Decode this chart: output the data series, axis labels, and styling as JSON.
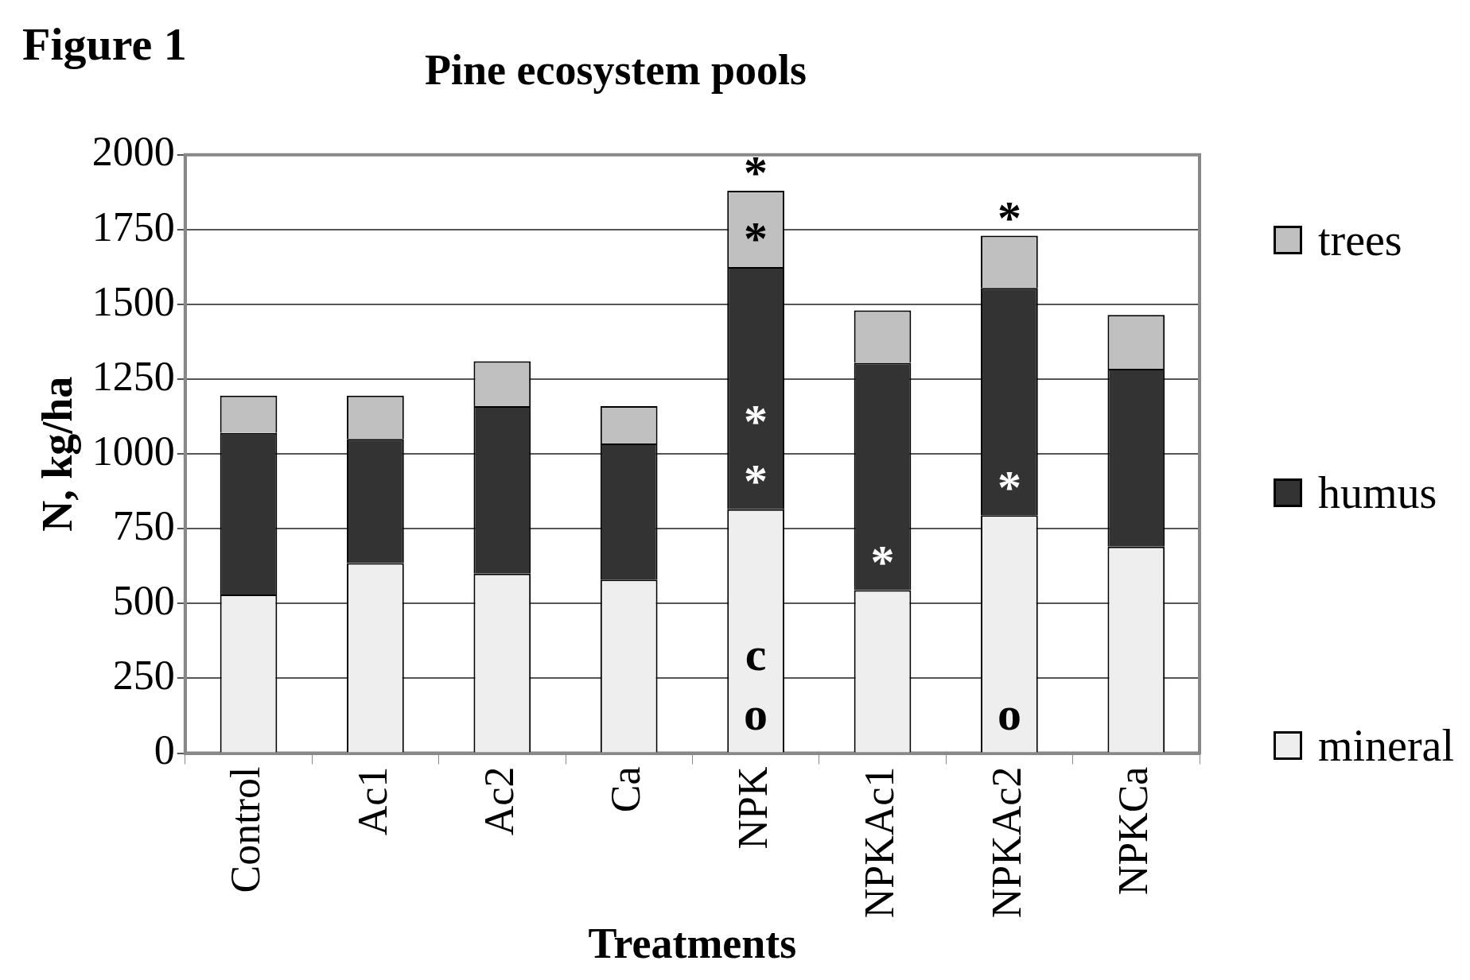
{
  "chart_data": {
    "type": "bar",
    "title": "Pine ecosystem pools",
    "xlabel": "Treatments",
    "ylabel": "N, kg/ha",
    "categories": [
      "Control",
      "Ac1",
      "Ac2",
      "Ca",
      "NPK",
      "NPKAc1",
      "NPKAc2",
      "NPKCa"
    ],
    "stacked": true,
    "ylim": [
      0,
      2000
    ],
    "yticks": [
      0,
      250,
      500,
      750,
      1000,
      1250,
      1500,
      1750,
      2000
    ],
    "grid": "y",
    "legend": "right",
    "series": [
      {
        "name": "mineral",
        "color": "#eeeeee",
        "values": [
          530,
          635,
          600,
          580,
          815,
          545,
          795,
          690
        ]
      },
      {
        "name": "humus",
        "color": "#333333",
        "values": [
          540,
          415,
          560,
          455,
          810,
          760,
          760,
          595
        ]
      },
      {
        "name": "trees",
        "color": "#c0c0c0",
        "values": [
          125,
          145,
          150,
          125,
          255,
          175,
          175,
          180
        ]
      }
    ],
    "annotations": [
      "Figure 1",
      {
        "text": "*",
        "x": "NPK",
        "y": 1880
      },
      {
        "text": "*",
        "x": "NPK",
        "y": 1625
      },
      {
        "text": "*",
        "x": "NPK",
        "y": 815
      },
      {
        "text": "*",
        "x": "NPK",
        "y": 815
      },
      {
        "text": "o",
        "x": "NPK",
        "y": 0
      },
      {
        "text": "c",
        "x": "NPK",
        "y": 0
      },
      {
        "text": "*",
        "x": "NPKAc1",
        "y": 545
      },
      {
        "text": "*",
        "x": "NPKAc2",
        "y": 1730
      },
      {
        "text": "*",
        "x": "NPKAc2",
        "y": 795
      },
      {
        "text": "o",
        "x": "NPKAc2",
        "y": 0
      }
    ]
  }
}
